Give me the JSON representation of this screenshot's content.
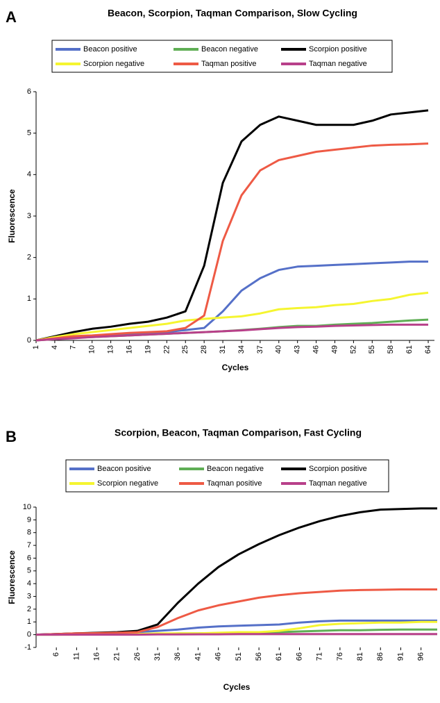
{
  "chart_data": [
    {
      "type": "line",
      "panel": "A",
      "title": "Beacon, Scorpion, Taqman Comparison, Slow Cycling",
      "x_label": "Cycles",
      "y_label": "Fluorescence",
      "x": [
        1,
        4,
        7,
        10,
        13,
        16,
        19,
        22,
        25,
        28,
        31,
        34,
        37,
        40,
        43,
        46,
        49,
        52,
        55,
        58,
        61,
        64
      ],
      "xlim": [
        1,
        65
      ],
      "xticks": [
        1,
        4,
        7,
        10,
        13,
        16,
        19,
        22,
        25,
        28,
        31,
        34,
        37,
        40,
        43,
        46,
        49,
        52,
        55,
        58,
        61,
        64
      ],
      "ylim": [
        0,
        6
      ],
      "yticks": [
        0,
        1,
        2,
        3,
        4,
        5,
        6
      ],
      "series": [
        {
          "name": "Beacon positive",
          "color": "#5570c8",
          "values": [
            0,
            0.05,
            0.08,
            0.1,
            0.12,
            0.15,
            0.18,
            0.2,
            0.25,
            0.3,
            0.7,
            1.2,
            1.5,
            1.7,
            1.78,
            1.8,
            1.82,
            1.84,
            1.86,
            1.88,
            1.9,
            1.9
          ]
        },
        {
          "name": "Beacon negative",
          "color": "#5fae55",
          "values": [
            0,
            0.03,
            0.06,
            0.08,
            0.1,
            0.12,
            0.14,
            0.16,
            0.18,
            0.2,
            0.22,
            0.25,
            0.28,
            0.32,
            0.35,
            0.35,
            0.38,
            0.4,
            0.42,
            0.45,
            0.48,
            0.5
          ]
        },
        {
          "name": "Scorpion positive",
          "color": "#000000",
          "values": [
            0,
            0.1,
            0.2,
            0.28,
            0.33,
            0.4,
            0.45,
            0.55,
            0.7,
            1.8,
            3.8,
            4.8,
            5.2,
            5.4,
            5.3,
            5.2,
            5.2,
            5.2,
            5.3,
            5.45,
            5.5,
            5.55
          ]
        },
        {
          "name": "Scorpion negative",
          "color": "#f5f530",
          "values": [
            0,
            0.08,
            0.15,
            0.2,
            0.25,
            0.3,
            0.35,
            0.4,
            0.48,
            0.52,
            0.55,
            0.58,
            0.65,
            0.75,
            0.78,
            0.8,
            0.85,
            0.88,
            0.95,
            1.0,
            1.1,
            1.15
          ]
        },
        {
          "name": "Taqman positive",
          "color": "#ee5a45",
          "values": [
            0,
            0.05,
            0.1,
            0.12,
            0.15,
            0.18,
            0.2,
            0.22,
            0.3,
            0.6,
            2.4,
            3.5,
            4.1,
            4.35,
            4.45,
            4.55,
            4.6,
            4.65,
            4.7,
            4.72,
            4.73,
            4.75
          ]
        },
        {
          "name": "Taqman negative",
          "color": "#b8408a",
          "values": [
            0,
            0.03,
            0.05,
            0.08,
            0.1,
            0.12,
            0.14,
            0.16,
            0.18,
            0.2,
            0.22,
            0.24,
            0.27,
            0.3,
            0.32,
            0.33,
            0.35,
            0.36,
            0.37,
            0.38,
            0.38,
            0.38
          ]
        }
      ]
    },
    {
      "type": "line",
      "panel": "B",
      "title": "Scorpion, Beacon, Taqman Comparison, Fast Cycling",
      "x_label": "Cycles",
      "y_label": "Fluorescence",
      "x": [
        1,
        6,
        11,
        16,
        21,
        26,
        31,
        36,
        41,
        46,
        51,
        56,
        61,
        66,
        71,
        76,
        81,
        86,
        91,
        96,
        100
      ],
      "xlim": [
        1,
        100
      ],
      "xticks": [
        6,
        11,
        16,
        21,
        26,
        31,
        36,
        41,
        46,
        51,
        56,
        61,
        66,
        71,
        76,
        81,
        86,
        91,
        96
      ],
      "ylim": [
        -1,
        10
      ],
      "yticks": [
        -1,
        0,
        1,
        2,
        3,
        4,
        5,
        6,
        7,
        8,
        9,
        10
      ],
      "series": [
        {
          "name": "Beacon positive",
          "color": "#5570c8",
          "values": [
            0,
            0.05,
            0.1,
            0.1,
            0.15,
            0.2,
            0.3,
            0.4,
            0.55,
            0.65,
            0.7,
            0.75,
            0.8,
            0.95,
            1.05,
            1.1,
            1.1,
            1.1,
            1.1,
            1.1,
            1.1
          ]
        },
        {
          "name": "Beacon negative",
          "color": "#5fae55",
          "values": [
            0,
            0,
            0.02,
            0.03,
            0.05,
            0.05,
            0.07,
            0.1,
            0.1,
            0.12,
            0.15,
            0.15,
            0.2,
            0.25,
            0.3,
            0.35,
            0.35,
            0.38,
            0.4,
            0.4,
            0.4
          ]
        },
        {
          "name": "Scorpion positive",
          "color": "#000000",
          "values": [
            0,
            0.05,
            0.1,
            0.15,
            0.2,
            0.3,
            0.8,
            2.5,
            4.0,
            5.3,
            6.3,
            7.1,
            7.8,
            8.4,
            8.9,
            9.3,
            9.6,
            9.8,
            9.85,
            9.9,
            9.9
          ]
        },
        {
          "name": "Scorpion negative",
          "color": "#f5f530",
          "values": [
            0,
            0,
            0,
            0.05,
            0.05,
            0.05,
            0.1,
            0.1,
            0.1,
            0.15,
            0.2,
            0.2,
            0.3,
            0.5,
            0.75,
            0.85,
            0.9,
            0.95,
            0.95,
            1.0,
            1.0
          ]
        },
        {
          "name": "Taqman positive",
          "color": "#ee5a45",
          "values": [
            0,
            0.05,
            0.1,
            0.12,
            0.15,
            0.2,
            0.6,
            1.3,
            1.9,
            2.3,
            2.6,
            2.9,
            3.1,
            3.25,
            3.35,
            3.45,
            3.5,
            3.52,
            3.55,
            3.55,
            3.55
          ]
        },
        {
          "name": "Taqman negative",
          "color": "#b8408a",
          "values": [
            0,
            0,
            0,
            0,
            0,
            0,
            0.02,
            0.02,
            0.03,
            0.03,
            0.05,
            0.05,
            0.05,
            0.05,
            0.05,
            0.05,
            0.05,
            0.05,
            0.05,
            0.05,
            0.05
          ]
        }
      ]
    }
  ]
}
